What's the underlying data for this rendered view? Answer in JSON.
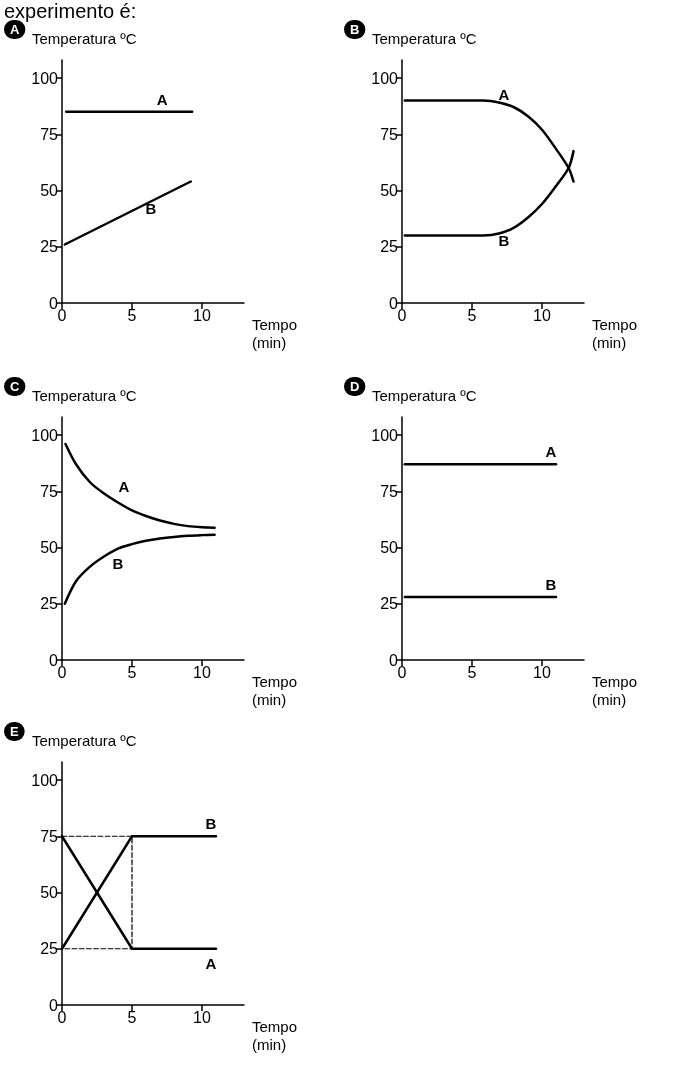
{
  "chart_data": [
    {
      "type": "line",
      "title": "A",
      "ylabel": "Temperatura ºC",
      "xlabel": "Tempo (min)",
      "annotations": [
        "experimento é:"
      ],
      "xlim": [
        0,
        13
      ],
      "xticks": [
        0,
        5,
        10
      ],
      "ylim": [
        0,
        108
      ],
      "yticks": [
        0,
        25,
        50,
        75,
        100
      ],
      "color": "#000000",
      "series": [
        {
          "name": "A",
          "x": [
            0.3,
            9.3
          ],
          "values": [
            85,
            85
          ]
        },
        {
          "name": "B",
          "x": [
            0.2,
            9.2
          ],
          "values": [
            26,
            54
          ]
        }
      ]
    },
    {
      "type": "line",
      "title": "B",
      "ylabel": "Temperatura ºC",
      "xlabel": "Tempo (min)",
      "xlim": [
        0,
        13
      ],
      "xticks": [
        0,
        5,
        10
      ],
      "ylim": [
        0,
        108
      ],
      "yticks": [
        0,
        25,
        50,
        75,
        100
      ],
      "color": "#000000",
      "series": [
        {
          "name": "A",
          "x": [
            0.2,
            5.8,
            7,
            8,
            9,
            10,
            11,
            11.9,
            12.25
          ],
          "values": [
            90,
            90,
            89,
            87,
            83,
            77,
            68.5,
            60,
            54
          ]
        },
        {
          "name": "B",
          "x": [
            0.2,
            5.8,
            7,
            8,
            9,
            10,
            11,
            11.9,
            12.25
          ],
          "values": [
            30,
            30,
            31,
            33.5,
            38,
            44,
            52,
            60,
            67.5
          ]
        }
      ]
    },
    {
      "type": "line",
      "title": "C",
      "ylabel": "Temperatura ºC",
      "xlabel": "Tempo (min)",
      "xlim": [
        0,
        13
      ],
      "xticks": [
        0,
        5,
        10
      ],
      "ylim": [
        0,
        108
      ],
      "yticks": [
        0,
        25,
        50,
        75,
        100
      ],
      "color": "#000000",
      "series": [
        {
          "name": "A",
          "x": [
            0.25,
            1,
            2,
            3,
            4,
            5,
            6,
            7,
            8,
            9,
            10,
            10.9
          ],
          "values": [
            96,
            87,
            79,
            74,
            70,
            66.5,
            64,
            62,
            60.5,
            59.5,
            59,
            58.8
          ]
        },
        {
          "name": "B",
          "x": [
            0.2,
            1,
            2,
            3,
            4,
            5,
            6,
            7,
            8,
            9,
            10,
            10.9
          ],
          "values": [
            25,
            35,
            41.5,
            46,
            49.5,
            51.5,
            53,
            54,
            54.7,
            55.2,
            55.5,
            55.7
          ]
        }
      ]
    },
    {
      "type": "line",
      "title": "D",
      "ylabel": "Temperatura ºC",
      "xlabel": "Tempo (min)",
      "xlim": [
        0,
        13
      ],
      "xticks": [
        0,
        5,
        10
      ],
      "ylim": [
        0,
        108
      ],
      "yticks": [
        0,
        25,
        50,
        75,
        100
      ],
      "color": "#000000",
      "series": [
        {
          "name": "A",
          "x": [
            0.2,
            11
          ],
          "values": [
            87,
            87
          ]
        },
        {
          "name": "B",
          "x": [
            0.2,
            11
          ],
          "values": [
            28,
            28
          ]
        }
      ]
    },
    {
      "type": "line",
      "title": "E",
      "ylabel": "Temperatura ºC",
      "xlabel": "Tempo (min)",
      "xlim": [
        0,
        13
      ],
      "xticks": [
        0,
        5,
        10
      ],
      "ylim": [
        0,
        108
      ],
      "yticks": [
        0,
        25,
        50,
        75,
        100
      ],
      "color": "#000000",
      "series": [
        {
          "name": "A",
          "x": [
            0,
            5,
            11
          ],
          "values": [
            75,
            25,
            25
          ]
        },
        {
          "name": "B",
          "x": [
            0,
            5,
            11
          ],
          "values": [
            25,
            75,
            75
          ]
        },
        {
          "x": [
            0,
            5,
            5,
            0
          ],
          "values": [
            75,
            75,
            25,
            25
          ],
          "line_style": "dashed"
        }
      ]
    }
  ]
}
